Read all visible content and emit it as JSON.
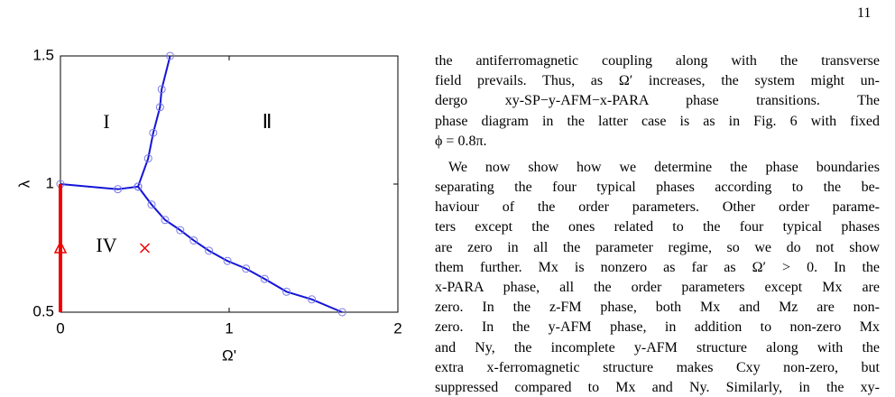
{
  "page_number": "11",
  "chart_data": {
    "type": "line",
    "xlabel": "Ω'",
    "ylabel": "λ",
    "xlim": [
      0,
      2
    ],
    "ylim": [
      0.5,
      1.5
    ],
    "xticks": [
      0,
      1,
      2
    ],
    "yticks": [
      0.5,
      1,
      1.5
    ],
    "annotations": [
      "I",
      "Ⅱ",
      "IV"
    ],
    "series": [
      {
        "color": "#1414d8",
        "marker": "circle",
        "x": [
          0,
          0.34,
          0.46
        ],
        "values": [
          1.0,
          0.98,
          0.99
        ]
      },
      {
        "color": "#1414d8",
        "marker": "circle",
        "x": [
          0.46,
          0.52,
          0.55,
          0.59,
          0.6,
          0.65
        ],
        "values": [
          0.99,
          1.1,
          1.2,
          1.3,
          1.37,
          1.5
        ]
      },
      {
        "color": "#1414d8",
        "marker": "circle",
        "x": [
          0.46,
          0.54,
          0.62,
          0.71,
          0.79,
          0.88,
          0.99,
          1.1,
          1.21,
          1.34,
          1.49,
          1.67
        ],
        "values": [
          0.99,
          0.92,
          0.86,
          0.82,
          0.78,
          0.74,
          0.7,
          0.67,
          0.63,
          0.58,
          0.55,
          0.5
        ]
      },
      {
        "color": "#ee0000",
        "marker": "none",
        "x": [
          0,
          0
        ],
        "values": [
          0.5,
          1.0
        ]
      }
    ],
    "points": [
      {
        "x": 0,
        "y": 0.75,
        "marker": "triangle",
        "color": "#ee0000"
      },
      {
        "x": 0.5,
        "y": 0.75,
        "marker": "cross",
        "color": "#ee0000"
      }
    ]
  },
  "text": {
    "paragraphs": [
      {
        "lines": [
          "the antiferromagnetic coupling along with the transverse",
          "field prevails. Thus, as Ω′ increases, the system might un-",
          "dergo xy-SP−y-AFM−x-PARA phase transitions. The",
          "phase diagram in the latter case is as in Fig. 6 with fixed",
          "ϕ = 0.8π."
        ]
      },
      {
        "lines": [
          "We now show how we determine the phase boundaries",
          "separating the four typical phases according to the be-",
          "haviour of the order parameters. Other order parame-",
          "ters except the ones related to the four typical phases",
          "are zero in all the parameter regime, so we do not show",
          "them further. Mx is nonzero as far as Ω′ > 0. In the",
          "x-PARA phase, all the order parameters except Mx are",
          "zero. In the z-FM phase, both Mx and Mz are non-",
          "zero. In the y-AFM phase, in addition to non-zero Mx",
          "and Ny, the incomplete y-AFM structure along with the",
          "extra x-ferromagnetic structure makes Cxy non-zero, but",
          "suppressed compared to Mx and Ny. Similarly, in the xy-"
        ]
      }
    ]
  }
}
